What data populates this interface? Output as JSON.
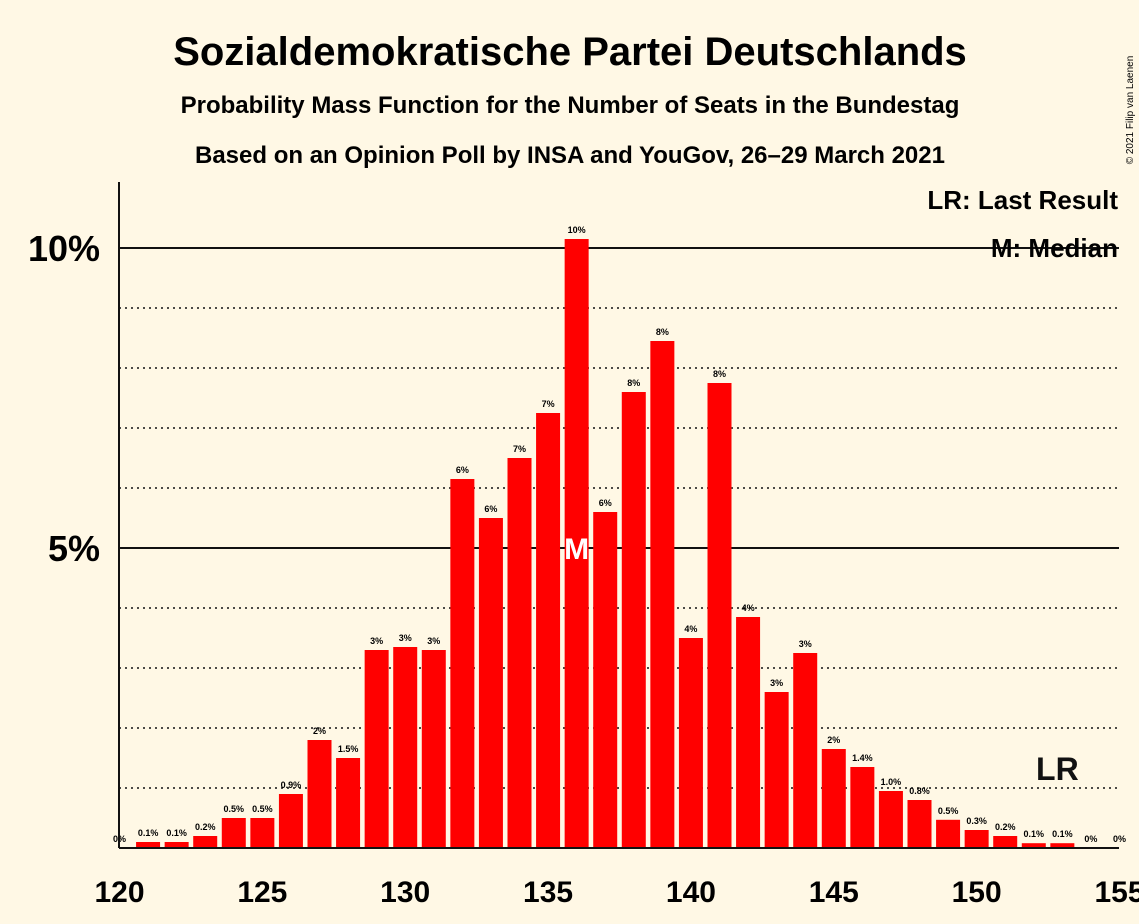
{
  "chart_data": {
    "type": "bar",
    "title": "Sozialdemokratische Partei Deutschlands",
    "subtitle1": "Probability Mass Function for the Number of Seats in the Bundestag",
    "subtitle2": "Based on an Opinion Poll by INSA and YouGov, 26–29 March 2021",
    "copyright": "© 2021 Filip van Laenen",
    "legend": {
      "lr": "LR: Last Result",
      "median": "M: Median"
    },
    "median_marker": "M",
    "lr_marker": "LR",
    "median_seat": 136,
    "last_result_seat": 153,
    "bar_color": "#ff0000",
    "background_color": "#fff8e5",
    "ylim": [
      0,
      11
    ],
    "yticks": [
      {
        "value": 5,
        "label": "5%"
      },
      {
        "value": 10,
        "label": "10%"
      }
    ],
    "xticks": [
      120,
      125,
      130,
      135,
      140,
      145,
      150,
      155
    ],
    "xlim": [
      120,
      155
    ],
    "seats": [
      120,
      121,
      122,
      123,
      124,
      125,
      126,
      127,
      128,
      129,
      130,
      131,
      132,
      133,
      134,
      135,
      136,
      137,
      138,
      139,
      140,
      141,
      142,
      143,
      144,
      145,
      146,
      147,
      148,
      149,
      150,
      151,
      152,
      153,
      154,
      155
    ],
    "values": [
      0,
      0.1,
      0.1,
      0.2,
      0.5,
      0.5,
      0.9,
      1.8,
      1.5,
      3.3,
      3.35,
      3.3,
      6.15,
      5.5,
      6.5,
      7.25,
      10.15,
      5.6,
      7.6,
      8.45,
      3.5,
      7.75,
      3.85,
      2.6,
      3.25,
      1.65,
      1.35,
      0.95,
      0.8,
      0.47,
      0.3,
      0.2,
      0.08,
      0.08,
      0,
      0
    ],
    "labels": [
      "0%",
      "0.1%",
      "0.1%",
      "0.2%",
      "0.5%",
      "0.5%",
      "0.9%",
      "2%",
      "1.5%",
      "3%",
      "3%",
      "3%",
      "6%",
      "6%",
      "7%",
      "7%",
      "10%",
      "6%",
      "8%",
      "8%",
      "4%",
      "8%",
      "4%",
      "3%",
      "3%",
      "2%",
      "1.4%",
      "1.0%",
      "0.8%",
      "0.5%",
      "0.3%",
      "0.2%",
      "0.1%",
      "0.1%",
      "0%",
      "0%"
    ]
  }
}
